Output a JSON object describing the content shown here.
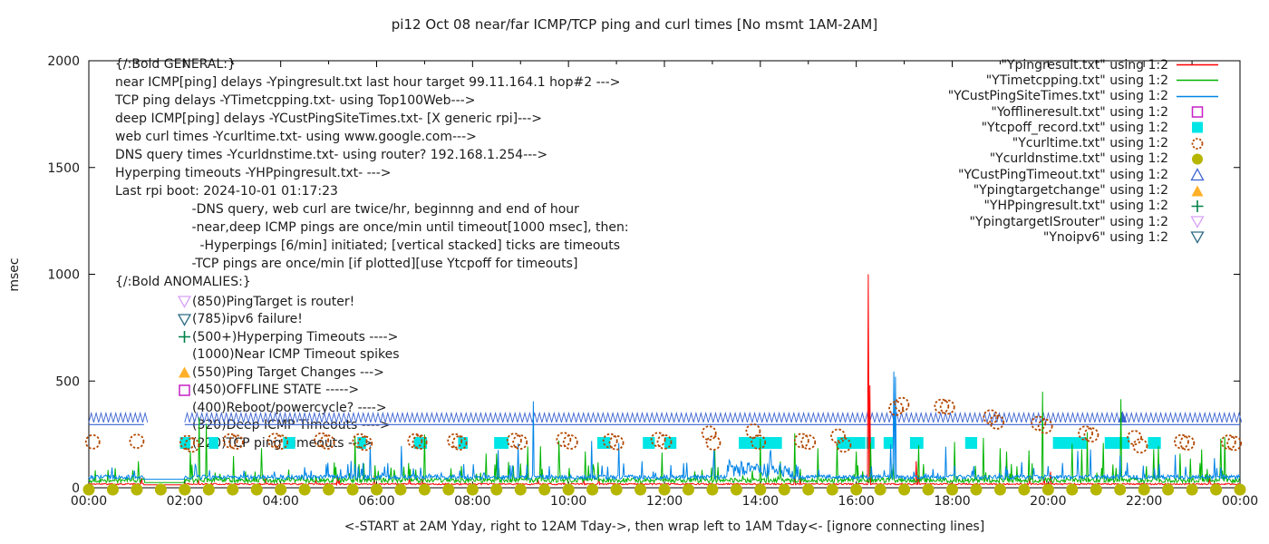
{
  "title": "pi12 Oct 08  near/far ICMP/TCP ping and curl times [No msmt 1AM-2AM]",
  "y_axis_label": "msec",
  "x_axis_caption": "<-START at 2AM Yday, right to 12AM Tday->, then wrap left to 1AM Tday<- [ignore connecting lines]",
  "axes": {
    "y_ticks": [
      0,
      500,
      1000,
      1500,
      2000
    ],
    "x_tick_labels": [
      "00:00",
      "02:00",
      "04:00",
      "06:00",
      "08:00",
      "10:00",
      "12:00",
      "14:00",
      "16:00",
      "18:00",
      "20:00",
      "22:00",
      "00:00"
    ],
    "grid": "off",
    "legend_position": "top-right-outside-style"
  },
  "annotations": {
    "general": {
      "lines": [
        "{/:Bold GENERAL:}",
        "near ICMP[ping] delays -Ypingresult.txt last hour target 99.11.164.1 hop#2 --->",
        "TCP ping delays -YTimetcpping.txt- using Top100Web--->",
        "deep ICMP[ping] delays -YCustPingSiteTimes.txt- [X generic rpi]--->",
        "web curl times -Ycurltime.txt- using www.google.com--->",
        "DNS query times -Ycurldnstime.txt- using router? 192.168.1.254--->",
        "Hyperping timeouts -YHPpingresult.txt- --->",
        "Last rpi boot: 2024-10-01 01:17:23",
        "                   -DNS query, web curl are twice/hr, beginnng and end of hour",
        "                   -near,deep ICMP pings are once/min until timeout[1000 msec], then:",
        "                     -Hyperpings [6/min] initiated; [vertical stacked] ticks are timeouts",
        "                   -TCP pings are once/min [if plotted][use Ytcpoff for timeouts]"
      ]
    },
    "anomalies": {
      "heading": "{/:Bold ANOMALIES:}",
      "items": [
        {
          "marker": "tri-down-open",
          "color": "#d8a2f8",
          "text": "(850)PingTarget is router!"
        },
        {
          "marker": "tri-down-open",
          "color": "#2e6b87",
          "text": "(785)ipv6 failure!"
        },
        {
          "marker": "plus",
          "color": "#008048",
          "text": "(500+)Hyperping Timeouts ---->"
        },
        {
          "marker": null,
          "color": null,
          "text": "(1000)Near ICMP Timeout spikes"
        },
        {
          "marker": "tri-up-filled",
          "color": "#ffb028",
          "text": "(550)Ping Target Changes --->"
        },
        {
          "marker": "square-open",
          "color": "#c520c5",
          "text": "(450)OFFLINE STATE ----->"
        },
        {
          "marker": null,
          "color": null,
          "text": "(400)Reboot/powercycle? ---->"
        },
        {
          "marker": null,
          "color": null,
          "text": "(320)Deep ICMP Timeouts ---->"
        },
        {
          "marker": null,
          "color": null,
          "text": "(220)TCP ping Timeouts --->"
        }
      ]
    }
  },
  "legend": [
    {
      "label": "\"Ypingresult.txt\" using 1:2",
      "marker": "line",
      "color": "#ff0000"
    },
    {
      "label": "\"YTimetcpping.txt\" using 1:2",
      "marker": "line",
      "color": "#00b400"
    },
    {
      "label": "\"YCustPingSiteTimes.txt\" using 1:2",
      "marker": "line",
      "color": "#0084e8"
    },
    {
      "label": "\"Yofflineresult.txt\" using 1:2",
      "marker": "square-open",
      "color": "#c520c5"
    },
    {
      "label": "\"Ytcpoff_record.txt\" using 1:2",
      "marker": "square-filled",
      "color": "#00e5e5"
    },
    {
      "label": "\"Ycurltime.txt\" using 1:2",
      "marker": "circle-open",
      "color": "#b34700"
    },
    {
      "label": "\"Ycurldnstime.txt\" using 1:2",
      "marker": "circle-filled",
      "color": "#b6b600"
    },
    {
      "label": "\"YCustPingTimeout.txt\" using 1:2",
      "marker": "tri-up-open",
      "color": "#3a62d2"
    },
    {
      "label": "\"Ypingtargetchange\" using 1:2",
      "marker": "tri-up-filled",
      "color": "#ffb028"
    },
    {
      "label": "\"YHPpingresult.txt\" using 1:2",
      "marker": "plus",
      "color": "#008048"
    },
    {
      "label": "\"YpingtargetISrouter\" using 1:2",
      "marker": "tri-down-open",
      "color": "#d8a2f8"
    },
    {
      "label": "\"Ynoipv6\" using 1:2",
      "marker": "tri-down-open",
      "color": "#2e6b87"
    }
  ],
  "chart_data": {
    "type": "line",
    "title": "pi12 Oct 08  near/far ICMP/TCP ping and curl times [No msmt 1AM-2AM]",
    "xlabel": "<-START at 2AM Yday, right to 12AM Tday->, then wrap left to 1AM Tday<- [ignore connecting lines]",
    "ylabel": "msec",
    "ylim": [
      0,
      2000
    ],
    "xlim_hours": [
      0,
      24
    ],
    "x_tick_step_hours": 2,
    "no_msmt_gap": [
      1.15,
      2.0
    ],
    "series": [
      {
        "name": "Ypingresult.txt",
        "style": "line",
        "color": "#ff0000",
        "texture": {
          "seed": 11,
          "baseline": 14,
          "jitter": 7,
          "p1": 0.012,
          "a1": [
            15,
            30
          ]
        },
        "spikes": [
          [
            16.25,
            1000
          ],
          [
            16.29,
            480
          ],
          [
            17.25,
            125
          ],
          [
            20.05,
            75
          ]
        ]
      },
      {
        "name": "YTimetcpping.txt",
        "style": "line",
        "color": "#00b400",
        "texture": {
          "seed": 22,
          "baseline": 24,
          "jitter": 22,
          "p1": 0.06,
          "a1": [
            20,
            60
          ],
          "p2": 0.01,
          "a2": [
            80,
            150
          ]
        },
        "spikes": [
          [
            2.3,
            330
          ],
          [
            2.45,
            300
          ],
          [
            3.6,
            185
          ],
          [
            5.55,
            240
          ],
          [
            7.0,
            250
          ],
          [
            8.5,
            160
          ],
          [
            10.35,
            170
          ],
          [
            11.95,
            165
          ],
          [
            13.05,
            175
          ],
          [
            14.0,
            230
          ],
          [
            14.72,
            255
          ],
          [
            15.2,
            185
          ],
          [
            15.6,
            210
          ],
          [
            16.0,
            170
          ],
          [
            17.3,
            200
          ],
          [
            18.05,
            215
          ],
          [
            19.0,
            185
          ],
          [
            19.14,
            170
          ],
          [
            19.6,
            175
          ],
          [
            19.88,
            450
          ],
          [
            20.5,
            205
          ],
          [
            20.82,
            260
          ],
          [
            21.15,
            210
          ],
          [
            21.52,
            415
          ],
          [
            22.3,
            195
          ],
          [
            22.75,
            160
          ],
          [
            23.2,
            180
          ],
          [
            23.6,
            230
          ]
        ]
      },
      {
        "name": "YCustPingSiteTimes.txt",
        "style": "line",
        "color": "#0084e8",
        "texture": {
          "seed": 33,
          "baseline": 40,
          "jitter": 20,
          "p1": 0.05,
          "a1": [
            15,
            55
          ],
          "p2": 0.007,
          "a2": [
            60,
            120
          ],
          "burst": [
            13.3,
            14.6,
            70
          ]
        },
        "spikes": [
          [
            9.26,
            405
          ],
          [
            13.35,
            130
          ],
          [
            14.2,
            160
          ],
          [
            16.78,
            545
          ],
          [
            16.81,
            520
          ],
          [
            19.45,
            120
          ],
          [
            21.5,
            150
          ]
        ]
      },
      {
        "name": "Yofflineresult.txt",
        "style": "square-open",
        "color": "#c520c5",
        "points": []
      },
      {
        "name": "Ytcpoff_record.txt",
        "style": "square-filled",
        "color": "#00e5e5",
        "value": 210,
        "bars": [
          [
            1.9,
            2.12
          ],
          [
            2.5,
            2.7
          ],
          [
            4.05,
            4.3
          ],
          [
            5.6,
            5.78
          ],
          [
            6.78,
            7.05
          ],
          [
            7.7,
            7.9
          ],
          [
            8.45,
            8.75
          ],
          [
            10.6,
            10.87
          ],
          [
            11.55,
            11.8
          ],
          [
            12.0,
            12.25
          ],
          [
            13.55,
            14.45
          ],
          [
            15.6,
            16.19
          ],
          [
            16.21,
            16.38
          ],
          [
            16.57,
            16.77
          ],
          [
            17.12,
            17.4
          ],
          [
            18.27,
            18.52
          ],
          [
            20.1,
            20.8
          ],
          [
            21.18,
            21.7
          ],
          [
            22.08,
            22.35
          ]
        ]
      },
      {
        "name": "Ycurltime.txt",
        "style": "circle-open",
        "color": "#b34700",
        "points": [
          [
            0.08,
            215
          ],
          [
            1.0,
            218
          ],
          [
            2.05,
            212
          ],
          [
            2.15,
            200
          ],
          [
            2.95,
            220
          ],
          [
            3.07,
            214
          ],
          [
            3.88,
            222
          ],
          [
            4.0,
            214
          ],
          [
            4.85,
            224
          ],
          [
            4.97,
            214
          ],
          [
            5.65,
            220
          ],
          [
            5.76,
            208
          ],
          [
            6.8,
            220
          ],
          [
            6.9,
            214
          ],
          [
            7.63,
            220
          ],
          [
            7.73,
            210
          ],
          [
            8.87,
            222
          ],
          [
            8.99,
            214
          ],
          [
            9.9,
            226
          ],
          [
            10.04,
            214
          ],
          [
            10.87,
            220
          ],
          [
            11.0,
            211
          ],
          [
            11.87,
            226
          ],
          [
            12.0,
            215
          ],
          [
            12.93,
            256
          ],
          [
            13.02,
            210
          ],
          [
            13.85,
            266
          ],
          [
            13.96,
            214
          ],
          [
            14.86,
            221
          ],
          [
            15.0,
            214
          ],
          [
            15.62,
            242
          ],
          [
            15.74,
            200
          ],
          [
            16.83,
            372
          ],
          [
            16.95,
            390
          ],
          [
            17.78,
            382
          ],
          [
            17.9,
            378
          ],
          [
            18.8,
            332
          ],
          [
            18.93,
            308
          ],
          [
            19.8,
            302
          ],
          [
            19.94,
            288
          ],
          [
            20.78,
            256
          ],
          [
            20.9,
            248
          ],
          [
            21.8,
            235
          ],
          [
            21.92,
            196
          ],
          [
            22.78,
            216
          ],
          [
            22.9,
            210
          ],
          [
            23.76,
            214
          ],
          [
            23.88,
            208
          ]
        ]
      },
      {
        "name": "Ycurldnstime.txt",
        "style": "circle-filled",
        "color": "#b6b600",
        "interval": 0.5,
        "value": 0,
        "range": [
          0,
          24
        ]
      },
      {
        "name": "YCustPingTimeout.txt",
        "style": "triangle-band",
        "color": "#3a62d2",
        "level": 320,
        "line_level": 296,
        "segments": [
          [
            0,
            1.15
          ],
          [
            2.0,
            24
          ]
        ],
        "filled_points": [
          21.55
        ]
      },
      {
        "name": "Ypingtargetchange",
        "style": "tri-up-filled",
        "color": "#ffb028",
        "points": []
      },
      {
        "name": "YHPpingresult.txt",
        "style": "plus",
        "color": "#008048",
        "points": []
      },
      {
        "name": "YpingtargetISrouter",
        "style": "tri-down-open",
        "color": "#d8a2f8",
        "points": []
      },
      {
        "name": "Ynoipv6",
        "style": "tri-down-open",
        "color": "#2e6b87",
        "points": []
      }
    ]
  }
}
